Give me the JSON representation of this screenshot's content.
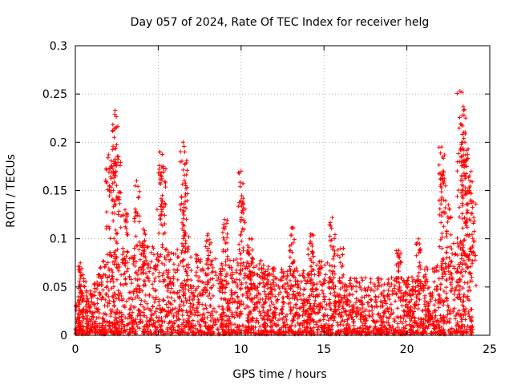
{
  "chart_data": {
    "type": "scatter",
    "title": "Day 057 of 2024, Rate Of TEC Index for receiver helg",
    "xlabel": "GPS time / hours",
    "ylabel": "ROTI / TECUs",
    "xlim": [
      0,
      25
    ],
    "ylim": [
      0,
      0.3
    ],
    "xticks": [
      0,
      5,
      10,
      15,
      20,
      25
    ],
    "xtick_labels": [
      "0",
      "5",
      "10",
      "15",
      "20",
      "25"
    ],
    "yticks": [
      0,
      0.05,
      0.1,
      0.15,
      0.2,
      0.25,
      0.3
    ],
    "ytick_labels": [
      "0",
      "0.05",
      "0.1",
      "0.15",
      "0.2",
      "0.25",
      "0.3"
    ],
    "grid": true,
    "marker": "+",
    "color": "#ff0000",
    "point_count": 3200,
    "x_range_of_points": [
      0,
      24
    ],
    "baseline_envelope": [
      {
        "x": 0.0,
        "y": 0.03
      },
      {
        "x": 0.5,
        "y": 0.06
      },
      {
        "x": 1.0,
        "y": 0.05
      },
      {
        "x": 2.0,
        "y": 0.09
      },
      {
        "x": 3.0,
        "y": 0.08
      },
      {
        "x": 4.0,
        "y": 0.1
      },
      {
        "x": 5.0,
        "y": 0.09
      },
      {
        "x": 6.0,
        "y": 0.09
      },
      {
        "x": 7.0,
        "y": 0.09
      },
      {
        "x": 8.0,
        "y": 0.08
      },
      {
        "x": 9.0,
        "y": 0.08
      },
      {
        "x": 10.0,
        "y": 0.09
      },
      {
        "x": 11.0,
        "y": 0.08
      },
      {
        "x": 12.0,
        "y": 0.07
      },
      {
        "x": 13.0,
        "y": 0.07
      },
      {
        "x": 14.0,
        "y": 0.07
      },
      {
        "x": 15.0,
        "y": 0.08
      },
      {
        "x": 16.0,
        "y": 0.06
      },
      {
        "x": 17.0,
        "y": 0.06
      },
      {
        "x": 18.0,
        "y": 0.06
      },
      {
        "x": 19.0,
        "y": 0.06
      },
      {
        "x": 20.0,
        "y": 0.06
      },
      {
        "x": 21.0,
        "y": 0.07
      },
      {
        "x": 22.0,
        "y": 0.08
      },
      {
        "x": 23.0,
        "y": 0.1
      },
      {
        "x": 24.0,
        "y": 0.09
      }
    ],
    "peaks": [
      {
        "x": 0.3,
        "y": 0.075
      },
      {
        "x": 2.0,
        "y": 0.187
      },
      {
        "x": 2.2,
        "y": 0.175
      },
      {
        "x": 2.4,
        "y": 0.233
      },
      {
        "x": 2.35,
        "y": 0.205
      },
      {
        "x": 2.6,
        "y": 0.185
      },
      {
        "x": 3.0,
        "y": 0.13
      },
      {
        "x": 3.7,
        "y": 0.16
      },
      {
        "x": 4.1,
        "y": 0.11
      },
      {
        "x": 5.1,
        "y": 0.19
      },
      {
        "x": 5.3,
        "y": 0.175
      },
      {
        "x": 6.5,
        "y": 0.2
      },
      {
        "x": 6.6,
        "y": 0.19
      },
      {
        "x": 6.7,
        "y": 0.12
      },
      {
        "x": 8.0,
        "y": 0.105
      },
      {
        "x": 9.0,
        "y": 0.12
      },
      {
        "x": 10.0,
        "y": 0.17
      },
      {
        "x": 10.1,
        "y": 0.138
      },
      {
        "x": 10.5,
        "y": 0.1
      },
      {
        "x": 13.1,
        "y": 0.112
      },
      {
        "x": 14.2,
        "y": 0.105
      },
      {
        "x": 15.5,
        "y": 0.122
      },
      {
        "x": 16.0,
        "y": 0.09
      },
      {
        "x": 19.5,
        "y": 0.088
      },
      {
        "x": 20.7,
        "y": 0.1
      },
      {
        "x": 22.1,
        "y": 0.195
      },
      {
        "x": 22.2,
        "y": 0.17
      },
      {
        "x": 22.5,
        "y": 0.135
      },
      {
        "x": 23.2,
        "y": 0.253
      },
      {
        "x": 23.4,
        "y": 0.237
      },
      {
        "x": 23.45,
        "y": 0.228
      },
      {
        "x": 23.5,
        "y": 0.2
      },
      {
        "x": 23.7,
        "y": 0.193
      },
      {
        "x": 23.8,
        "y": 0.16
      },
      {
        "x": 24.0,
        "y": 0.138
      }
    ]
  }
}
